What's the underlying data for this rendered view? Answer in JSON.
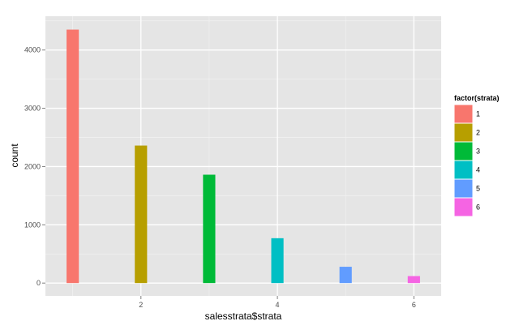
{
  "chart_data": {
    "type": "bar",
    "xlabel": "salesstrata$strata",
    "ylabel": "count",
    "xlim": [
      0.6,
      6.4
    ],
    "ylim": [
      -220,
      4580
    ],
    "x_ticks": [
      2,
      4,
      6
    ],
    "x_tick_labels": [
      "2",
      "4",
      "6"
    ],
    "y_ticks": [
      0,
      1000,
      2000,
      3000,
      4000
    ],
    "y_tick_labels": [
      "0",
      "1000",
      "2000",
      "3000",
      "4000"
    ],
    "bar_width": 0.18,
    "grid": true,
    "background_color": "#e5e5e5",
    "grid_color": "#ffffff",
    "legend": {
      "title": "factor(strata)",
      "position": "right",
      "entries": [
        "1",
        "2",
        "3",
        "4",
        "5",
        "6"
      ]
    },
    "bars": [
      {
        "x": 1,
        "value": 4350,
        "label": "1",
        "color": "#f8766d"
      },
      {
        "x": 2,
        "value": 2360,
        "label": "2",
        "color": "#b79f00"
      },
      {
        "x": 3,
        "value": 1860,
        "label": "3",
        "color": "#00ba38"
      },
      {
        "x": 4,
        "value": 770,
        "label": "4",
        "color": "#00bfc4"
      },
      {
        "x": 5,
        "value": 280,
        "label": "5",
        "color": "#619cff"
      },
      {
        "x": 6,
        "value": 120,
        "label": "6",
        "color": "#f564e3"
      }
    ]
  }
}
